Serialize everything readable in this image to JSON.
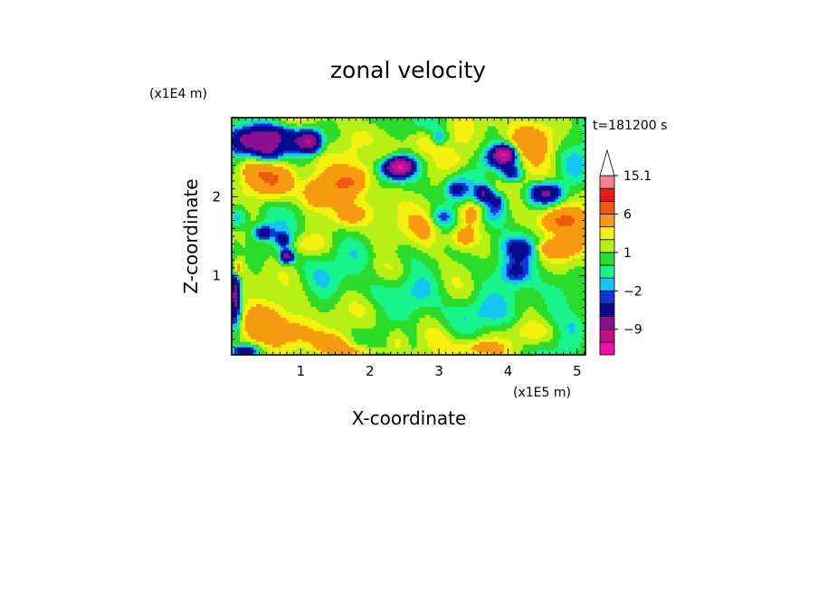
{
  "chart_data": {
    "type": "heatmap",
    "title": "zonal velocity",
    "xlabel": "X-coordinate",
    "ylabel": "Z-coordinate",
    "x_unit": "(x1E5 m)",
    "y_unit": "(x1E4 m)",
    "time_label": "t=181200 s",
    "xlim": [
      0,
      5.12
    ],
    "ylim": [
      0,
      3.0
    ],
    "x_ticks": [
      {
        "value": 1,
        "label": "1"
      },
      {
        "value": 2,
        "label": "2"
      },
      {
        "value": 3,
        "label": "3"
      },
      {
        "value": 4,
        "label": "4"
      },
      {
        "value": 5,
        "label": "5"
      }
    ],
    "y_ticks": [
      {
        "value": 1,
        "label": "1"
      },
      {
        "value": 2,
        "label": "2"
      }
    ],
    "colorbar": {
      "levels": [
        -15.1,
        -12,
        -9,
        -6,
        -3,
        -2,
        -1,
        0,
        1,
        2,
        3,
        6,
        9,
        12,
        15.1
      ],
      "colors": [
        "#f00ea8",
        "#c0108e",
        "#8c0f8e",
        "#0a0a8e",
        "#0c36d8",
        "#15c5f6",
        "#18f48c",
        "#2cdc2a",
        "#b8f016",
        "#f6f00e",
        "#f89a10",
        "#f05a10",
        "#e81a1a",
        "#f4828a",
        "#f8c4c4"
      ],
      "labels": [
        {
          "value": 15.1,
          "label": "15.1"
        },
        {
          "value": 6,
          "label": "6"
        },
        {
          "value": 1,
          "label": "1"
        },
        {
          "value": -2,
          "label": "−2"
        },
        {
          "value": -9,
          "label": "−9"
        }
      ]
    },
    "grid": false,
    "legend": "right"
  }
}
